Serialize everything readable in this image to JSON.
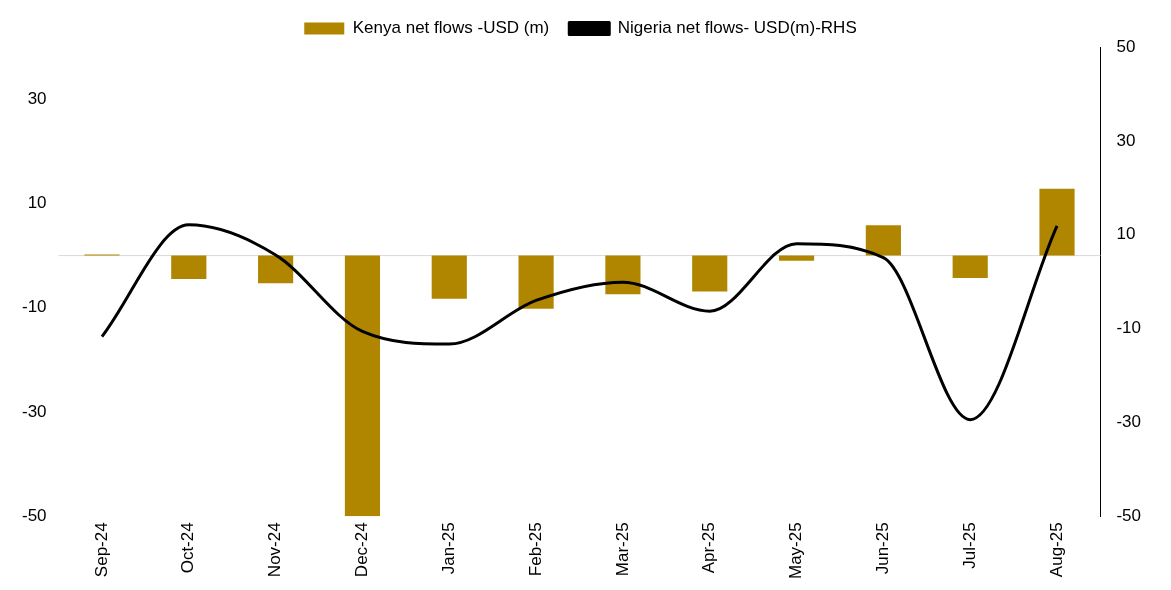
{
  "chart_data": {
    "type": "bar",
    "categories": [
      "Sep-24",
      "Oct-24",
      "Nov-24",
      "Dec-24",
      "Jan-25",
      "Feb-25",
      "Mar-25",
      "Apr-25",
      "May-25",
      "Jun-25",
      "Jul-25",
      "Aug-25"
    ],
    "series": [
      {
        "name": "Kenya net flows -USD (m)",
        "color": "#b08500",
        "values": [
          0.2,
          -4.5,
          -5.3,
          -50,
          -8.3,
          -10.2,
          -7.4,
          -6.9,
          -1,
          5.8,
          -4.3,
          12.8
        ]
      },
      {
        "name": "Nigeria net flows- USD(m)-RHS",
        "type": "line",
        "axis": "y2",
        "color": "#000000",
        "values": [
          -11.7,
          12.1,
          5.7,
          -10.6,
          -13.3,
          -4,
          -0.1,
          -6.3,
          8.1,
          5.1,
          -29.4,
          11.9
        ]
      }
    ],
    "ylim": [
      -50,
      40
    ],
    "yticks": [
      -50,
      -30,
      -10,
      10,
      30
    ],
    "y2lim": [
      -50,
      50
    ],
    "y2ticks": [
      -50,
      -30,
      -10,
      10,
      30,
      50
    ],
    "grid": false,
    "legend": "top",
    "marker": "none",
    "line_style": "solid"
  }
}
